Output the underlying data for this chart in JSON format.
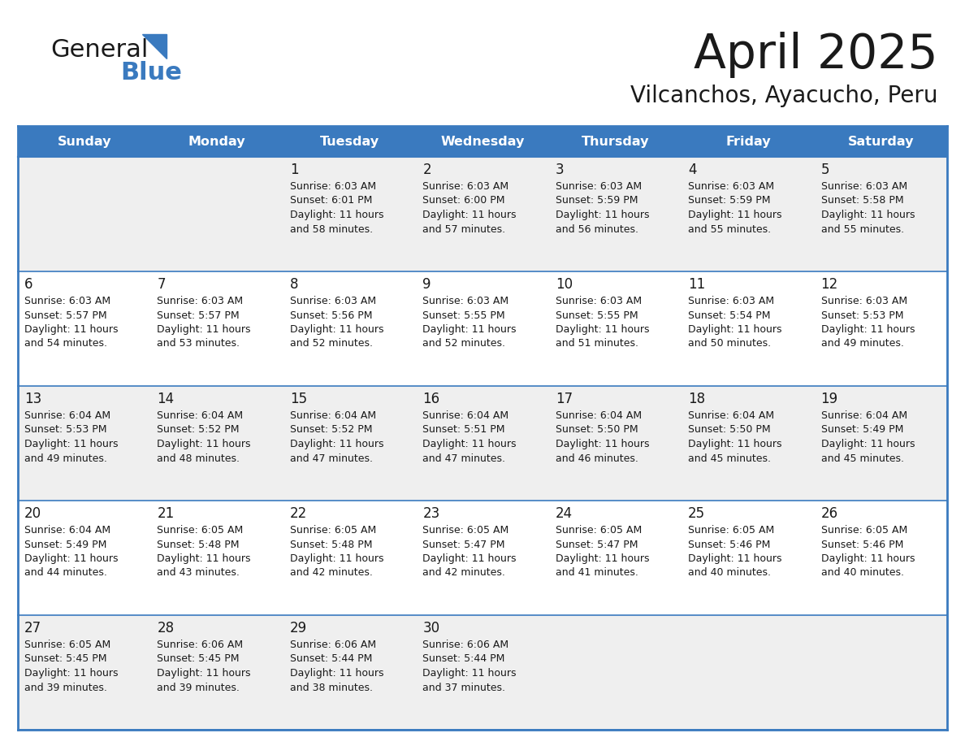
{
  "title": "April 2025",
  "subtitle": "Vilcanchos, Ayacucho, Peru",
  "header_bg": "#3a7abf",
  "header_text": "#ffffff",
  "row_bg_light": "#efefef",
  "row_bg_white": "#ffffff",
  "border_color": "#3a7abf",
  "text_color": "#1a1a1a",
  "days_of_week": [
    "Sunday",
    "Monday",
    "Tuesday",
    "Wednesday",
    "Thursday",
    "Friday",
    "Saturday"
  ],
  "calendar": [
    [
      "",
      "",
      "1",
      "2",
      "3",
      "4",
      "5"
    ],
    [
      "6",
      "7",
      "8",
      "9",
      "10",
      "11",
      "12"
    ],
    [
      "13",
      "14",
      "15",
      "16",
      "17",
      "18",
      "19"
    ],
    [
      "20",
      "21",
      "22",
      "23",
      "24",
      "25",
      "26"
    ],
    [
      "27",
      "28",
      "29",
      "30",
      "",
      "",
      ""
    ]
  ],
  "cell_data": {
    "1": {
      "sunrise": "6:03 AM",
      "sunset": "6:01 PM",
      "daylight": "11 hours and 58 minutes."
    },
    "2": {
      "sunrise": "6:03 AM",
      "sunset": "6:00 PM",
      "daylight": "11 hours and 57 minutes."
    },
    "3": {
      "sunrise": "6:03 AM",
      "sunset": "5:59 PM",
      "daylight": "11 hours and 56 minutes."
    },
    "4": {
      "sunrise": "6:03 AM",
      "sunset": "5:59 PM",
      "daylight": "11 hours and 55 minutes."
    },
    "5": {
      "sunrise": "6:03 AM",
      "sunset": "5:58 PM",
      "daylight": "11 hours and 55 minutes."
    },
    "6": {
      "sunrise": "6:03 AM",
      "sunset": "5:57 PM",
      "daylight": "11 hours and 54 minutes."
    },
    "7": {
      "sunrise": "6:03 AM",
      "sunset": "5:57 PM",
      "daylight": "11 hours and 53 minutes."
    },
    "8": {
      "sunrise": "6:03 AM",
      "sunset": "5:56 PM",
      "daylight": "11 hours and 52 minutes."
    },
    "9": {
      "sunrise": "6:03 AM",
      "sunset": "5:55 PM",
      "daylight": "11 hours and 52 minutes."
    },
    "10": {
      "sunrise": "6:03 AM",
      "sunset": "5:55 PM",
      "daylight": "11 hours and 51 minutes."
    },
    "11": {
      "sunrise": "6:03 AM",
      "sunset": "5:54 PM",
      "daylight": "11 hours and 50 minutes."
    },
    "12": {
      "sunrise": "6:03 AM",
      "sunset": "5:53 PM",
      "daylight": "11 hours and 49 minutes."
    },
    "13": {
      "sunrise": "6:04 AM",
      "sunset": "5:53 PM",
      "daylight": "11 hours and 49 minutes."
    },
    "14": {
      "sunrise": "6:04 AM",
      "sunset": "5:52 PM",
      "daylight": "11 hours and 48 minutes."
    },
    "15": {
      "sunrise": "6:04 AM",
      "sunset": "5:52 PM",
      "daylight": "11 hours and 47 minutes."
    },
    "16": {
      "sunrise": "6:04 AM",
      "sunset": "5:51 PM",
      "daylight": "11 hours and 47 minutes."
    },
    "17": {
      "sunrise": "6:04 AM",
      "sunset": "5:50 PM",
      "daylight": "11 hours and 46 minutes."
    },
    "18": {
      "sunrise": "6:04 AM",
      "sunset": "5:50 PM",
      "daylight": "11 hours and 45 minutes."
    },
    "19": {
      "sunrise": "6:04 AM",
      "sunset": "5:49 PM",
      "daylight": "11 hours and 45 minutes."
    },
    "20": {
      "sunrise": "6:04 AM",
      "sunset": "5:49 PM",
      "daylight": "11 hours and 44 minutes."
    },
    "21": {
      "sunrise": "6:05 AM",
      "sunset": "5:48 PM",
      "daylight": "11 hours and 43 minutes."
    },
    "22": {
      "sunrise": "6:05 AM",
      "sunset": "5:48 PM",
      "daylight": "11 hours and 42 minutes."
    },
    "23": {
      "sunrise": "6:05 AM",
      "sunset": "5:47 PM",
      "daylight": "11 hours and 42 minutes."
    },
    "24": {
      "sunrise": "6:05 AM",
      "sunset": "5:47 PM",
      "daylight": "11 hours and 41 minutes."
    },
    "25": {
      "sunrise": "6:05 AM",
      "sunset": "5:46 PM",
      "daylight": "11 hours and 40 minutes."
    },
    "26": {
      "sunrise": "6:05 AM",
      "sunset": "5:46 PM",
      "daylight": "11 hours and 40 minutes."
    },
    "27": {
      "sunrise": "6:05 AM",
      "sunset": "5:45 PM",
      "daylight": "11 hours and 39 minutes."
    },
    "28": {
      "sunrise": "6:06 AM",
      "sunset": "5:45 PM",
      "daylight": "11 hours and 39 minutes."
    },
    "29": {
      "sunrise": "6:06 AM",
      "sunset": "5:44 PM",
      "daylight": "11 hours and 38 minutes."
    },
    "30": {
      "sunrise": "6:06 AM",
      "sunset": "5:44 PM",
      "daylight": "11 hours and 37 minutes."
    }
  },
  "logo_general_color": "#1a1a1a",
  "logo_blue_color": "#3a7abf",
  "logo_triangle_color": "#3a7abf"
}
